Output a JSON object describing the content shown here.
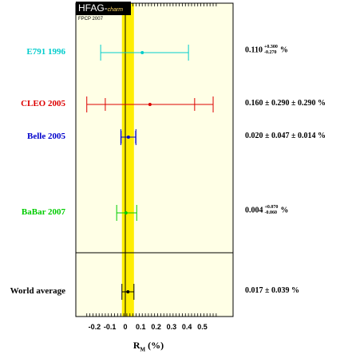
{
  "header": {
    "logo_main": "HFAG-",
    "logo_sub": "charm",
    "subtitle": "FPCP 2007"
  },
  "colors": {
    "band": "#ffee00",
    "frame": "#000000",
    "measurement_colors": [
      "#00cccc",
      "#dd0000",
      "#0000cc",
      "#00cc00",
      "#000000"
    ]
  },
  "chart_data": {
    "type": "scatter",
    "title": "",
    "xlabel": "R_M (%)",
    "xlabel_main": "R",
    "xlabel_sub": "M",
    "xlabel_unit": "(%)",
    "xlim": [
      -0.25,
      0.6
    ],
    "xticks": [
      -0.2,
      -0.1,
      0,
      0.1,
      0.2,
      0.3,
      0.4,
      0.5
    ],
    "xtick_labels": [
      "-0.2",
      "-0.1",
      "0",
      "0.1",
      "0.2",
      "0.3",
      "0.4",
      "0.5"
    ],
    "average_band": {
      "center": 0.017,
      "error": 0.039
    },
    "measurements": [
      {
        "label": "E791 1996",
        "value": 0.11,
        "err_up": 0.3,
        "err_down": 0.27,
        "color": "#00cccc",
        "value_text": "0.110",
        "up_text": "+0.300",
        "down_text": "-0.270",
        "unit_text": "%",
        "asym": true
      },
      {
        "label": "CLEO 2005",
        "value": 0.16,
        "stat_err": 0.29,
        "syst_err": 0.29,
        "color": "#dd0000",
        "value_text": "0.160 ± 0.290 ± 0.290 %",
        "asym": false
      },
      {
        "label": "Belle 2005",
        "value": 0.02,
        "stat_err": 0.047,
        "syst_err": 0.014,
        "color": "#0000cc",
        "value_text": "0.020 ± 0.047 ± 0.014 %",
        "asym": false
      },
      {
        "label": "BaBar 2007",
        "value": 0.004,
        "err_up": 0.07,
        "err_down": 0.06,
        "color": "#00cc00",
        "value_text": "0.004",
        "up_text": "+0.070",
        "down_text": "-0.060",
        "unit_text": "%",
        "asym": true
      },
      {
        "label": "World average",
        "value": 0.017,
        "stat_err": 0.039,
        "color": "#000000",
        "value_text": "0.017 ± 0.039 %",
        "asym": false
      }
    ]
  }
}
